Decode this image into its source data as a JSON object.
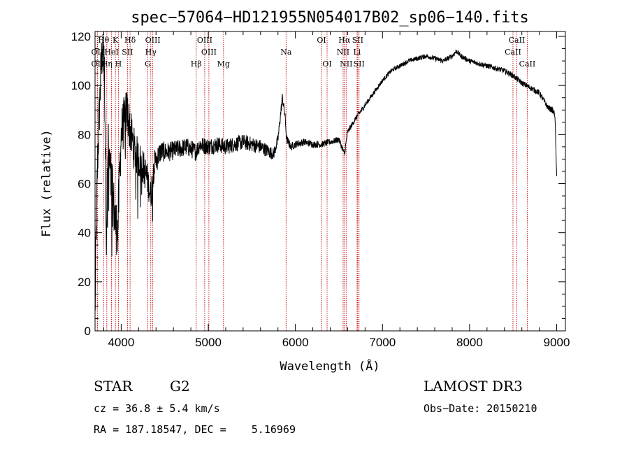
{
  "chart_data": {
    "type": "line",
    "title": "spec−57064−HD121955N054017B02_sp06−140.fits",
    "xlabel": "Wavelength (Å)",
    "ylabel": "Flux (relative)",
    "xlim": [
      3700,
      9100
    ],
    "ylim": [
      0,
      122
    ],
    "x_ticks": [
      4000,
      5000,
      6000,
      7000,
      8000,
      9000
    ],
    "y_ticks": [
      0,
      20,
      40,
      60,
      80,
      100,
      120
    ],
    "grid": false,
    "series": [
      {
        "name": "flux",
        "anchors": [
          [
            3700,
            5
          ],
          [
            3710,
            35
          ],
          [
            3730,
            70
          ],
          [
            3750,
            90
          ],
          [
            3770,
            108
          ],
          [
            3790,
            118
          ],
          [
            3810,
            102
          ],
          [
            3830,
            42
          ],
          [
            3850,
            75
          ],
          [
            3880,
            62
          ],
          [
            3900,
            56
          ],
          [
            3930,
            45
          ],
          [
            3960,
            40
          ],
          [
            3980,
            62
          ],
          [
            4000,
            80
          ],
          [
            4030,
            85
          ],
          [
            4070,
            90
          ],
          [
            4100,
            82
          ],
          [
            4150,
            74
          ],
          [
            4200,
            70
          ],
          [
            4250,
            67
          ],
          [
            4300,
            62
          ],
          [
            4340,
            55
          ],
          [
            4380,
            68
          ],
          [
            4450,
            73
          ],
          [
            4550,
            73
          ],
          [
            4650,
            74
          ],
          [
            4750,
            75
          ],
          [
            4861,
            73
          ],
          [
            4900,
            76
          ],
          [
            5000,
            75
          ],
          [
            5100,
            76
          ],
          [
            5200,
            75
          ],
          [
            5300,
            76
          ],
          [
            5400,
            77
          ],
          [
            5500,
            76
          ],
          [
            5600,
            75
          ],
          [
            5700,
            73
          ],
          [
            5750,
            72
          ],
          [
            5800,
            78
          ],
          [
            5850,
            95
          ],
          [
            5880,
            88
          ],
          [
            5900,
            78
          ],
          [
            5950,
            75
          ],
          [
            6000,
            76
          ],
          [
            6100,
            77
          ],
          [
            6200,
            76
          ],
          [
            6300,
            76
          ],
          [
            6400,
            77
          ],
          [
            6500,
            78
          ],
          [
            6563,
            72
          ],
          [
            6600,
            81
          ],
          [
            6700,
            87
          ],
          [
            6800,
            92
          ],
          [
            6900,
            97
          ],
          [
            7000,
            102
          ],
          [
            7100,
            106
          ],
          [
            7200,
            108
          ],
          [
            7300,
            110
          ],
          [
            7400,
            111
          ],
          [
            7500,
            112
          ],
          [
            7600,
            111
          ],
          [
            7700,
            110
          ],
          [
            7800,
            112
          ],
          [
            7850,
            114
          ],
          [
            7900,
            112
          ],
          [
            8000,
            110
          ],
          [
            8100,
            109
          ],
          [
            8200,
            108
          ],
          [
            8300,
            107
          ],
          [
            8400,
            106
          ],
          [
            8500,
            104
          ],
          [
            8600,
            101
          ],
          [
            8700,
            99
          ],
          [
            8800,
            97
          ],
          [
            8850,
            94
          ],
          [
            8900,
            91
          ],
          [
            8950,
            90
          ],
          [
            8980,
            88
          ],
          [
            9000,
            62
          ]
        ],
        "noise_amplitude": [
          [
            3700,
            10
          ],
          [
            3900,
            12
          ],
          [
            4200,
            8
          ],
          [
            4500,
            4
          ],
          [
            5000,
            3.5
          ],
          [
            5600,
            3
          ],
          [
            6000,
            1.5
          ],
          [
            6600,
            1.2
          ],
          [
            7000,
            0.9
          ],
          [
            9000,
            1.2
          ]
        ]
      }
    ],
    "line_markers": [
      {
        "label": "Hθ",
        "x": 3798,
        "row": 1
      },
      {
        "label": "K",
        "x": 3934,
        "row": 1
      },
      {
        "label": "Hδ",
        "x": 4102,
        "row": 1
      },
      {
        "label": "OIII",
        "x": 4363,
        "row": 1
      },
      {
        "label": "OIII",
        "x": 4959,
        "row": 1
      },
      {
        "label": "OI",
        "x": 6300,
        "row": 1
      },
      {
        "label": "Hα",
        "x": 6563,
        "row": 1
      },
      {
        "label": "SII",
        "x": 6716,
        "row": 1
      },
      {
        "label": "CaII",
        "x": 8542,
        "row": 1
      },
      {
        "label": "OII",
        "x": 3727,
        "row": 2
      },
      {
        "label": "HeI",
        "x": 3889,
        "row": 2
      },
      {
        "label": "SII",
        "x": 4072,
        "row": 2
      },
      {
        "label": "Hγ",
        "x": 4340,
        "row": 2
      },
      {
        "label": "OIII",
        "x": 5007,
        "row": 2
      },
      {
        "label": "Na",
        "x": 5893,
        "row": 2
      },
      {
        "label": "NII",
        "x": 6548,
        "row": 2
      },
      {
        "label": "Li",
        "x": 6708,
        "row": 2
      },
      {
        "label": "CaII",
        "x": 8498,
        "row": 2
      },
      {
        "label": "OII",
        "x": 3727,
        "row": 3
      },
      {
        "label": "Hη",
        "x": 3835,
        "row": 3
      },
      {
        "label": "H",
        "x": 3968,
        "row": 3
      },
      {
        "label": "G",
        "x": 4305,
        "row": 3
      },
      {
        "label": "Hβ",
        "x": 4861,
        "row": 3
      },
      {
        "label": "Mg",
        "x": 5175,
        "row": 3
      },
      {
        "label": "OI",
        "x": 6364,
        "row": 3
      },
      {
        "label": "NII",
        "x": 6583,
        "row": 3
      },
      {
        "label": "SII",
        "x": 6731,
        "row": 3
      },
      {
        "label": "CaII",
        "x": 8662,
        "row": 3
      }
    ]
  },
  "info": {
    "object_class": "STAR",
    "subclass": "G2",
    "survey": "LAMOST DR3",
    "cz_line": "cz = 36.8 ± 5.4 km/s",
    "obs_date_line": "Obs−Date: 20150210",
    "radec_line": "RA = 187.18547, DEC =    5.16969"
  },
  "colors": {
    "spectrum": "#000000",
    "marker": "#c00000",
    "axis": "#000000"
  }
}
